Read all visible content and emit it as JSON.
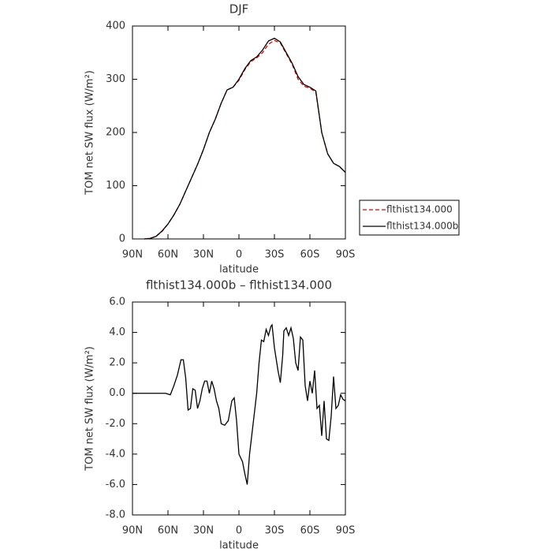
{
  "chart_data": [
    {
      "type": "line",
      "title": "DJF",
      "xlabel": "latitude",
      "ylabel": "TOM net SW flux (W/m²)",
      "x": [
        80,
        75,
        70,
        65,
        60,
        55,
        50,
        45,
        40,
        35,
        30,
        25,
        20,
        15,
        10,
        5,
        0,
        -5,
        -10,
        -15,
        -20,
        -25,
        -30,
        -35,
        -40,
        -45,
        -50,
        -55,
        -60,
        -65,
        -70,
        -75,
        -80,
        -85,
        -90
      ],
      "series": [
        {
          "name": "flthist134.000",
          "color": "#e00000",
          "dash": true,
          "values": [
            0,
            1,
            5,
            14,
            28,
            45,
            65,
            90,
            115,
            140,
            168,
            200,
            225,
            255,
            280,
            285,
            298,
            318,
            333,
            340,
            350,
            366,
            373,
            368,
            348,
            328,
            300,
            287,
            283,
            276,
            200,
            160,
            142,
            136,
            125
          ]
        },
        {
          "name": "flthist134.000b",
          "color": "#000000",
          "dash": false,
          "values": [
            0,
            1,
            5,
            15,
            28,
            45,
            65,
            90,
            115,
            140,
            168,
            200,
            225,
            255,
            280,
            285,
            300,
            320,
            335,
            342,
            355,
            372,
            377,
            370,
            350,
            330,
            305,
            290,
            285,
            278,
            200,
            160,
            142,
            136,
            125
          ]
        }
      ],
      "xlim": [
        90,
        -90
      ],
      "xticks": [
        {
          "value": 90,
          "label": "90N"
        },
        {
          "value": 60,
          "label": "60N"
        },
        {
          "value": 30,
          "label": "30N"
        },
        0,
        {
          "value": -30,
          "label": "30S"
        },
        {
          "value": -60,
          "label": "60S"
        },
        {
          "value": -90,
          "label": "90S"
        }
      ],
      "ylim": [
        0,
        400
      ],
      "yticks": [
        0,
        100,
        200,
        300,
        400
      ],
      "legend": "right"
    },
    {
      "type": "line",
      "title": "flthist134.000b – flthist134.000",
      "xlabel": "latitude",
      "ylabel": "TOM net SW flux (W/m²)",
      "x": [
        90,
        80,
        70,
        62,
        58,
        55,
        52,
        49,
        47,
        45,
        43,
        41,
        39,
        37,
        35,
        33,
        31,
        29,
        27,
        25,
        23,
        21,
        19,
        17,
        15,
        12,
        9,
        6,
        4,
        2,
        0,
        -3,
        -5,
        -7,
        -9,
        -12,
        -15,
        -17,
        -19,
        -21,
        -23,
        -25,
        -27,
        -28,
        -30,
        -33,
        -35,
        -37,
        -38,
        -40,
        -42,
        -44,
        -46,
        -48,
        -50,
        -52,
        -54,
        -56,
        -58,
        -60,
        -62,
        -64,
        -66,
        -68,
        -70,
        -72,
        -74,
        -76,
        -78,
        -80,
        -82,
        -84,
        -86,
        -88,
        -90
      ],
      "series": [
        {
          "name": "flthist134.000b – flthist134.000",
          "color": "#000000",
          "dash": false,
          "values": [
            0,
            0,
            0,
            0,
            -0.1,
            0.5,
            1.2,
            2.2,
            2.2,
            1.0,
            -1.1,
            -1.0,
            0.3,
            0.2,
            -1.0,
            -0.5,
            0.3,
            0.8,
            0.8,
            0.0,
            0.8,
            0.3,
            -0.5,
            -1.0,
            -2.0,
            -2.1,
            -1.8,
            -0.5,
            -0.3,
            -1.8,
            -4.0,
            -4.5,
            -5.3,
            -6.0,
            -4.0,
            -2.0,
            0.0,
            2.0,
            3.5,
            3.4,
            4.2,
            3.8,
            4.4,
            4.5,
            3.0,
            1.5,
            0.7,
            2.5,
            4.1,
            4.3,
            3.8,
            4.3,
            3.6,
            2.0,
            1.5,
            3.7,
            3.5,
            0.5,
            -0.5,
            0.8,
            0.0,
            1.5,
            -1.0,
            -0.8,
            -2.8,
            -0.5,
            -3.0,
            -3.1,
            -1.5,
            1.1,
            -1.0,
            -0.8,
            -0.1,
            -0.4,
            -0.5
          ]
        }
      ],
      "xlim": [
        90,
        -90
      ],
      "xticks": [
        {
          "value": 90,
          "label": "90N"
        },
        {
          "value": 60,
          "label": "60N"
        },
        {
          "value": 30,
          "label": "30N"
        },
        0,
        {
          "value": -30,
          "label": "30S"
        },
        {
          "value": -60,
          "label": "60S"
        },
        {
          "value": -90,
          "label": "90S"
        }
      ],
      "ylim": [
        -8,
        6
      ],
      "yticks": [
        {
          "value": -8,
          "label": "-8.0"
        },
        {
          "value": -6,
          "label": "-6.0"
        },
        {
          "value": -4,
          "label": "-4.0"
        },
        {
          "value": -2,
          "label": "-2.0"
        },
        {
          "value": 0,
          "label": "0.0"
        },
        {
          "value": 2,
          "label": "2.0"
        },
        {
          "value": 4,
          "label": "4.0"
        },
        {
          "value": 6,
          "label": "6.0"
        }
      ]
    }
  ]
}
